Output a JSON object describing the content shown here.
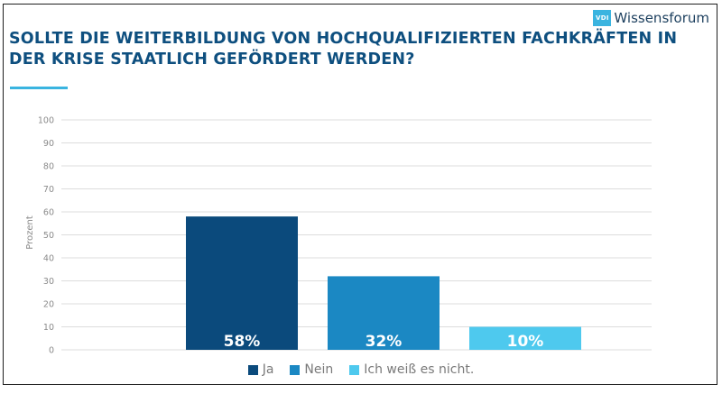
{
  "brand": {
    "logo_text": "VDI",
    "name": "Wissensforum"
  },
  "colors": {
    "title": "#0e4f7f",
    "accent": "#3ab4e0",
    "grid": "#dcdcdc",
    "tick_text": "#8a8a8a",
    "series": [
      "#0b4a7c",
      "#1b88c3",
      "#4ec9ee"
    ]
  },
  "chart_data": {
    "type": "bar",
    "title": "SOLLTE DIE WEITERBILDUNG VON HOCHQUALIFIZIERTEN FACHKRÄFTEN IN DER KRISE STAATLICH GEFÖRDERT WERDEN?",
    "xlabel": "",
    "ylabel": "Prozent",
    "ylim": [
      0,
      100
    ],
    "yticks": [
      0,
      10,
      20,
      30,
      40,
      50,
      60,
      70,
      80,
      90,
      100
    ],
    "grid": true,
    "legend_position": "bottom",
    "categories": [
      "Ja",
      "Nein",
      "Ich weiß es nicht."
    ],
    "values": [
      58,
      32,
      10
    ],
    "data_labels": [
      "58%",
      "32%",
      "10%"
    ]
  }
}
